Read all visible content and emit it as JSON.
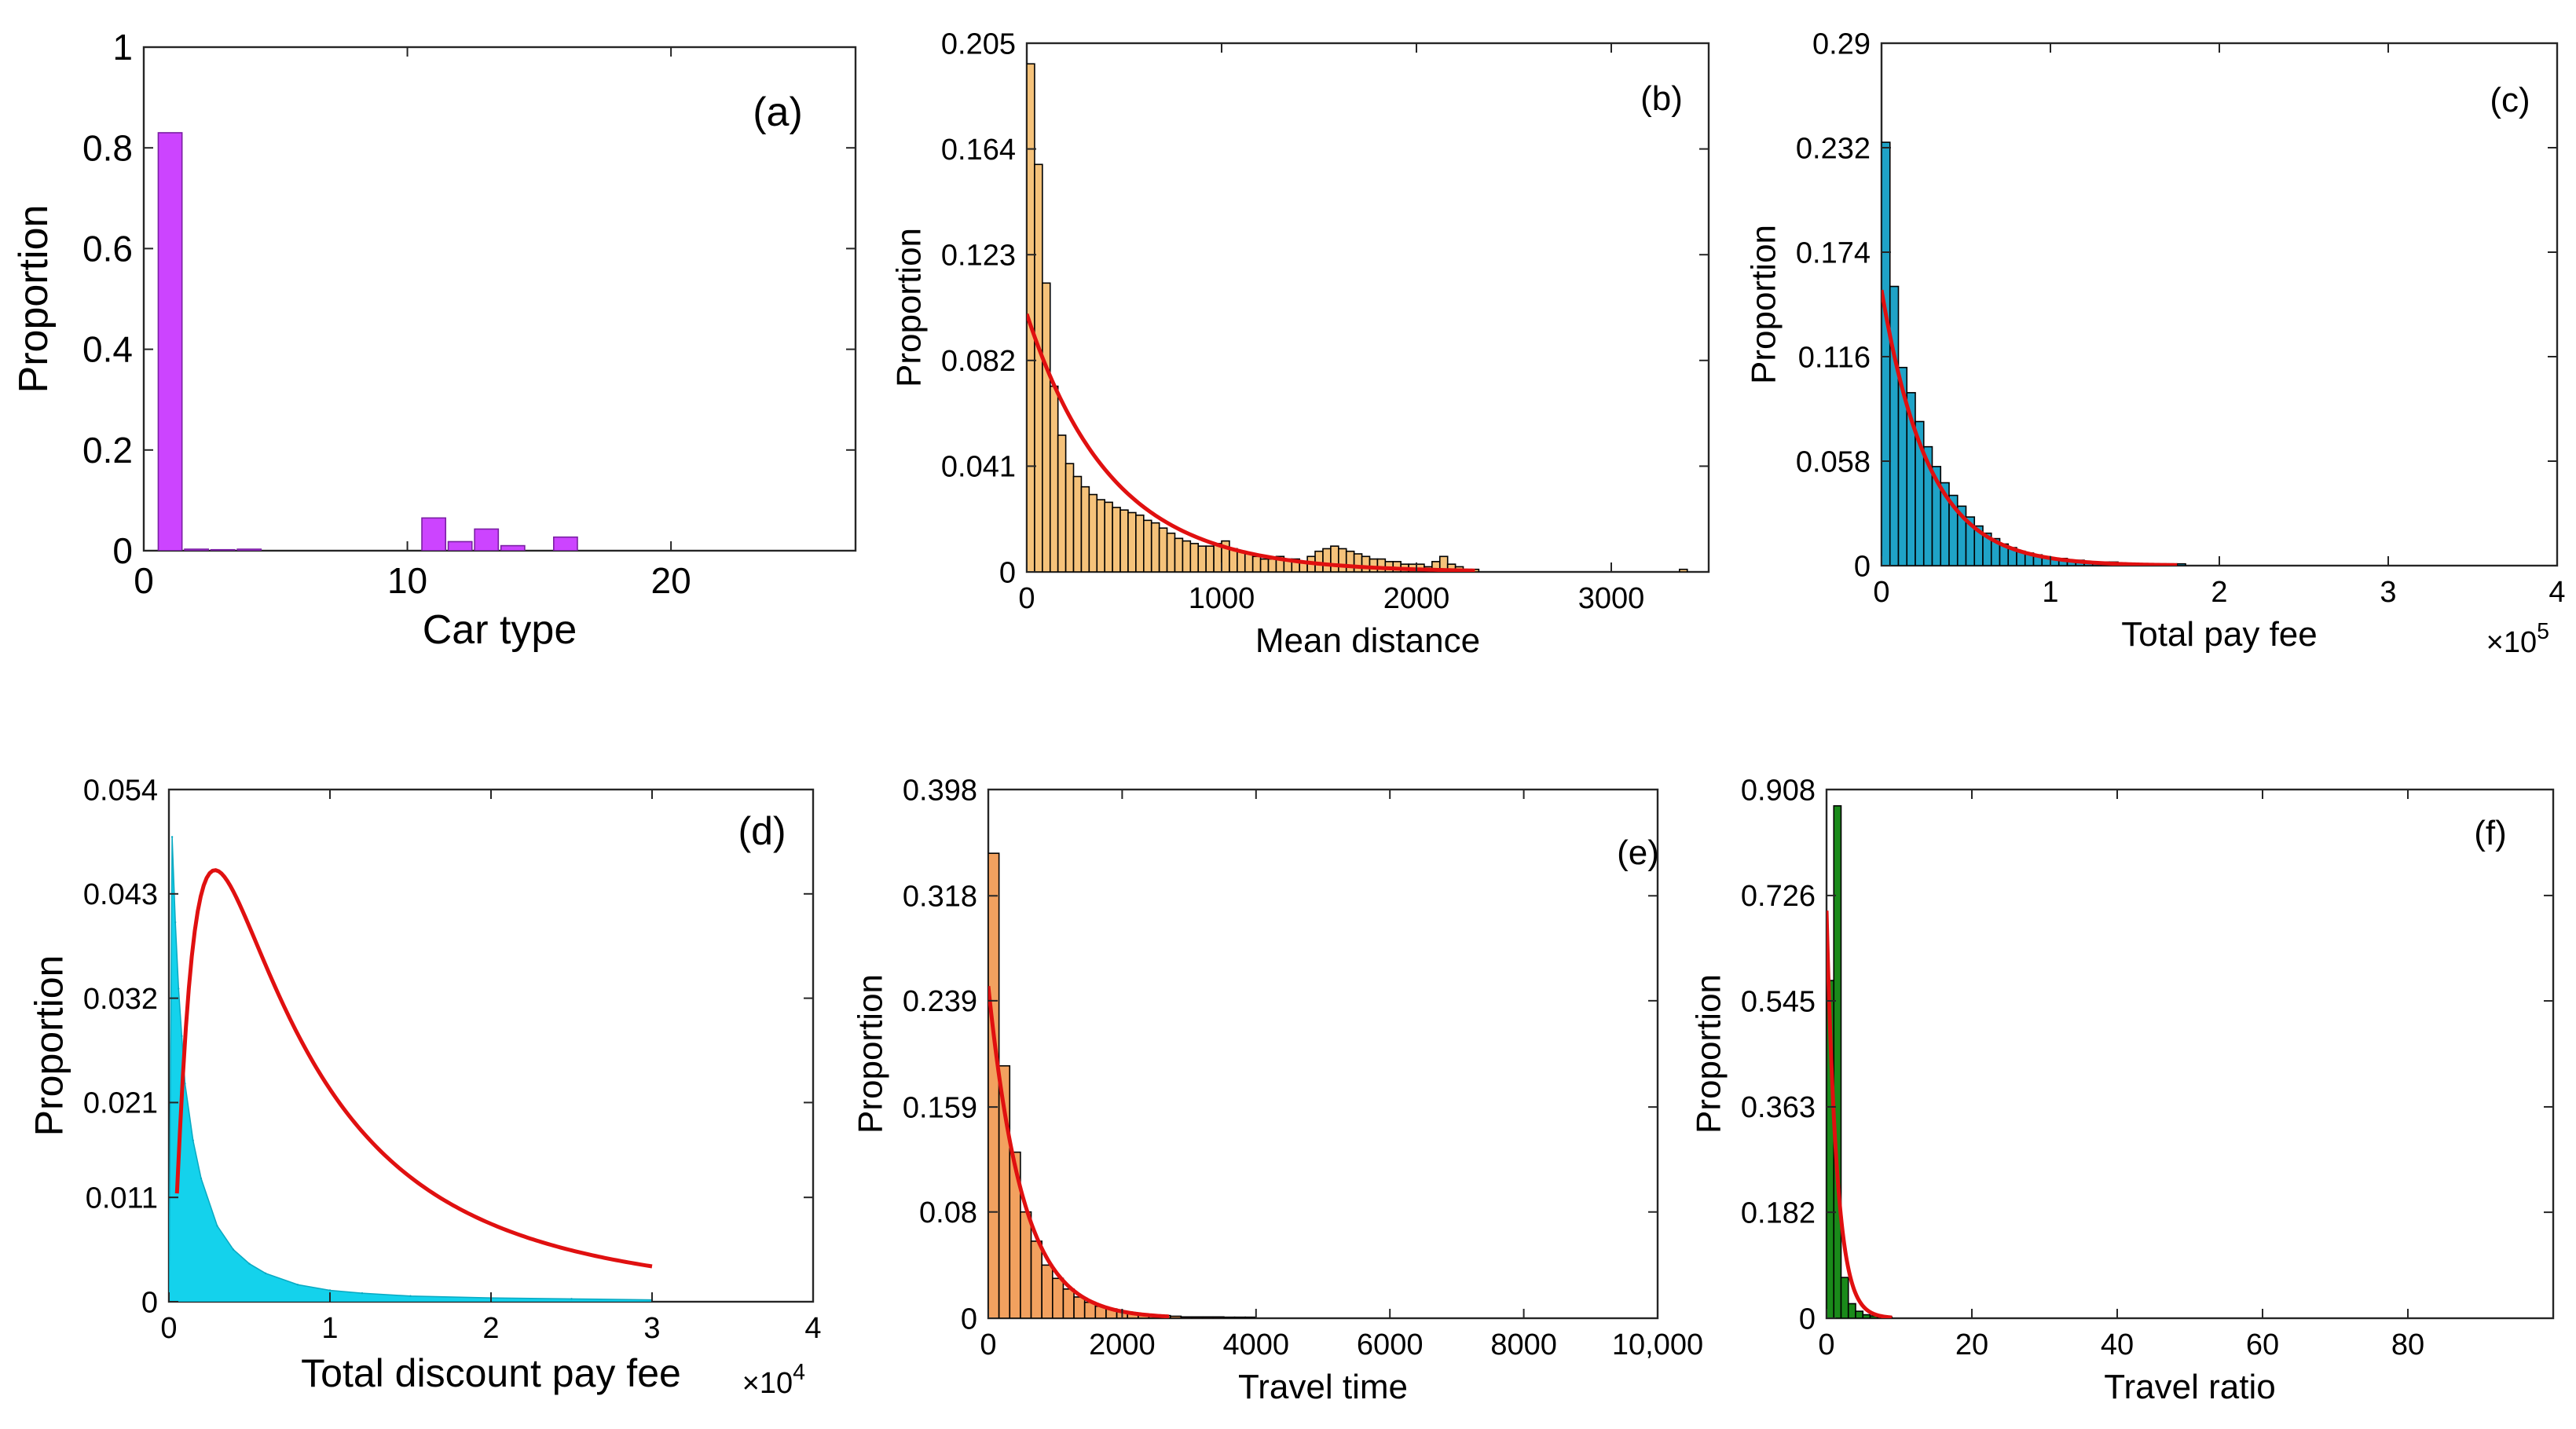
{
  "figure": {
    "panels": [
      "a",
      "b",
      "c",
      "d",
      "e",
      "f"
    ]
  },
  "chart_data": [
    {
      "id": "a",
      "type": "bar",
      "panel_label": "(a)",
      "xlabel": "Car type",
      "ylabel": "Proportion",
      "xlim": [
        0,
        27
      ],
      "ylim": [
        0,
        1
      ],
      "xticks": [
        0,
        10,
        20
      ],
      "xtick_labels": [
        "0",
        "10",
        "20"
      ],
      "yticks": [
        0,
        0.2,
        0.4,
        0.6,
        0.8,
        1
      ],
      "ytick_labels": [
        "0",
        "0.2",
        "0.4",
        "0.6",
        "0.8",
        "1"
      ],
      "bar_color": "#cc44ff",
      "bar_outline": "#7a1fa3",
      "bin_width": 0.9,
      "x": [
        1,
        2,
        3,
        4,
        11,
        12,
        13,
        14,
        16
      ],
      "values": [
        0.83,
        0.003,
        0.002,
        0.003,
        0.065,
        0.018,
        0.043,
        0.01,
        0.027
      ]
    },
    {
      "id": "b",
      "type": "bar",
      "panel_label": "(b)",
      "xlabel": "Mean distance",
      "ylabel": "Proportion",
      "xlim": [
        0,
        3500
      ],
      "ylim": [
        0,
        0.205
      ],
      "xticks": [
        0,
        1000,
        2000,
        3000
      ],
      "xtick_labels": [
        "0",
        "1000",
        "2000",
        "3000"
      ],
      "yticks": [
        0,
        0.041,
        0.082,
        0.123,
        0.164,
        0.205
      ],
      "ytick_labels": [
        "0",
        "0.041",
        "0.082",
        "0.123",
        "0.164",
        "0.205"
      ],
      "bar_color": "#f5c27a",
      "bar_outline": "#000000",
      "bin_width": 40,
      "x": [
        0,
        40,
        80,
        120,
        160,
        200,
        240,
        280,
        320,
        360,
        400,
        440,
        480,
        520,
        560,
        600,
        640,
        680,
        720,
        760,
        800,
        840,
        880,
        920,
        960,
        1000,
        1040,
        1080,
        1120,
        1160,
        1200,
        1240,
        1280,
        1320,
        1360,
        1400,
        1440,
        1480,
        1520,
        1560,
        1600,
        1640,
        1680,
        1720,
        1760,
        1800,
        1840,
        1880,
        1920,
        1960,
        2000,
        2040,
        2080,
        2120,
        2160,
        2200,
        2240,
        2280,
        3350
      ],
      "values": [
        0.197,
        0.158,
        0.112,
        0.072,
        0.053,
        0.042,
        0.037,
        0.033,
        0.03,
        0.028,
        0.027,
        0.025,
        0.024,
        0.023,
        0.022,
        0.02,
        0.019,
        0.017,
        0.015,
        0.013,
        0.012,
        0.011,
        0.01,
        0.01,
        0.011,
        0.012,
        0.009,
        0.008,
        0.007,
        0.006,
        0.005,
        0.005,
        0.006,
        0.005,
        0.005,
        0.004,
        0.006,
        0.008,
        0.009,
        0.01,
        0.009,
        0.008,
        0.007,
        0.006,
        0.005,
        0.005,
        0.004,
        0.004,
        0.003,
        0.003,
        0.003,
        0.002,
        0.004,
        0.006,
        0.003,
        0.002,
        0.001,
        0.001,
        0.001
      ],
      "fit": {
        "type": "exponential",
        "a": 0.1,
        "b": 0.0023,
        "x_range": [
          0,
          2300
        ],
        "color": "#e01010"
      }
    },
    {
      "id": "c",
      "type": "bar",
      "panel_label": "(c)",
      "xlabel": "Total pay fee",
      "ylabel": "Proportion",
      "exponent_label": "×10",
      "exponent_power": "5",
      "xlim": [
        0,
        4
      ],
      "ylim": [
        0,
        0.29
      ],
      "xticks": [
        0,
        1,
        2,
        3,
        4
      ],
      "xtick_labels": [
        "0",
        "1",
        "2",
        "3",
        "4"
      ],
      "yticks": [
        0,
        0.058,
        0.116,
        0.174,
        0.232,
        0.29
      ],
      "ytick_labels": [
        "0",
        "0.058",
        "0.116",
        "0.174",
        "0.232",
        "0.29"
      ],
      "bar_color": "#1fa3c7",
      "bar_outline": "#000000",
      "bin_width": 0.05,
      "x": [
        0,
        0.05,
        0.1,
        0.15,
        0.2,
        0.25,
        0.3,
        0.35,
        0.4,
        0.45,
        0.5,
        0.55,
        0.6,
        0.65,
        0.7,
        0.75,
        0.8,
        0.85,
        0.9,
        0.95,
        1.0,
        1.05,
        1.1,
        1.15,
        1.2,
        1.25,
        1.3,
        1.35,
        1.4,
        1.45,
        1.5,
        1.55,
        1.6,
        1.65,
        1.7,
        1.75
      ],
      "values": [
        0.235,
        0.155,
        0.11,
        0.096,
        0.08,
        0.066,
        0.055,
        0.046,
        0.039,
        0.033,
        0.027,
        0.022,
        0.018,
        0.015,
        0.012,
        0.01,
        0.008,
        0.007,
        0.006,
        0.005,
        0.004,
        0.004,
        0.003,
        0.003,
        0.002,
        0.002,
        0.002,
        0.002,
        0.001,
        0.001,
        0.001,
        0.001,
        0.001,
        0.001,
        0.001,
        0.001
      ],
      "fit": {
        "type": "exponential",
        "a": 0.153,
        "b": 3.6,
        "x_range": [
          0,
          1.75
        ],
        "color": "#e01010"
      }
    },
    {
      "id": "d",
      "type": "area",
      "panel_label": "(d)",
      "xlabel": "Total discount pay fee",
      "ylabel": "Proportion",
      "exponent_label": "×10",
      "exponent_power": "4",
      "xlim": [
        0,
        4
      ],
      "ylim": [
        0,
        0.054
      ],
      "xticks": [
        0,
        1,
        2,
        3,
        4
      ],
      "xtick_labels": [
        "0",
        "1",
        "2",
        "3",
        "4"
      ],
      "yticks": [
        0,
        0.011,
        0.021,
        0.032,
        0.043,
        0.054
      ],
      "ytick_labels": [
        "0",
        "0.011",
        "0.021",
        "0.032",
        "0.043",
        "0.054"
      ],
      "bar_color": "#14d2ec",
      "bar_outline": "#0aa9c2",
      "x": [
        0,
        0.02,
        0.04,
        0.06,
        0.08,
        0.1,
        0.15,
        0.2,
        0.3,
        0.4,
        0.5,
        0.6,
        0.8,
        1.0,
        1.2,
        1.5,
        2.0,
        2.5,
        3.0
      ],
      "values": [
        0.0,
        0.049,
        0.04,
        0.033,
        0.028,
        0.023,
        0.017,
        0.013,
        0.008,
        0.0055,
        0.004,
        0.003,
        0.0018,
        0.0012,
        0.0009,
        0.0006,
        0.0004,
        0.0003,
        0.0002
      ],
      "fit": {
        "type": "lognormal",
        "mu": -1.25,
        "sigma": 1.05,
        "scale": 0.0455,
        "x_range": [
          0.05,
          3.0
        ],
        "color": "#e01010"
      }
    },
    {
      "id": "e",
      "type": "bar",
      "panel_label": "(e)",
      "xlabel": "Travel time",
      "ylabel": "Proportion",
      "xlim": [
        0,
        10000
      ],
      "ylim": [
        0,
        0.398
      ],
      "xticks": [
        0,
        2000,
        4000,
        6000,
        8000,
        10000
      ],
      "xtick_labels": [
        "0",
        "2000",
        "4000",
        "6000",
        "8000",
        "10,000"
      ],
      "yticks": [
        0,
        0.08,
        0.159,
        0.239,
        0.318,
        0.398
      ],
      "ytick_labels": [
        "0",
        "0.08",
        "0.159",
        "0.239",
        "0.318",
        "0.398"
      ],
      "bar_color": "#f2a15f",
      "bar_outline": "#000000",
      "bin_width": 160,
      "x": [
        0,
        160,
        320,
        480,
        640,
        800,
        960,
        1120,
        1280,
        1440,
        1600,
        1760,
        1920,
        2080,
        2240,
        2400,
        2560,
        2720,
        2880,
        3040,
        3200,
        3360,
        3520,
        3680,
        3840
      ],
      "values": [
        0.35,
        0.19,
        0.125,
        0.08,
        0.058,
        0.04,
        0.03,
        0.022,
        0.016,
        0.012,
        0.009,
        0.007,
        0.005,
        0.004,
        0.003,
        0.0025,
        0.002,
        0.0015,
        0.001,
        0.001,
        0.001,
        0.001,
        0.0008,
        0.0008,
        0.0008
      ],
      "fit": {
        "type": "exponential",
        "a": 0.25,
        "b": 0.00195,
        "x_range": [
          0,
          2700
        ],
        "color": "#e01010"
      }
    },
    {
      "id": "f",
      "type": "bar",
      "panel_label": "(f)",
      "xlabel": "Travel ratio",
      "ylabel": "Proportion",
      "xlim": [
        0,
        100
      ],
      "ylim": [
        0,
        0.908
      ],
      "xticks": [
        0,
        20,
        40,
        60,
        80
      ],
      "xtick_labels": [
        "0",
        "20",
        "40",
        "60",
        "80"
      ],
      "yticks": [
        0,
        0.182,
        0.363,
        0.545,
        0.726,
        0.908
      ],
      "ytick_labels": [
        "0",
        "0.182",
        "0.363",
        "0.545",
        "0.726",
        "0.908"
      ],
      "bar_color": "#1a8a1a",
      "bar_outline": "#000000",
      "bin_width": 1,
      "x": [
        0,
        1,
        2,
        3,
        4,
        5,
        6,
        7,
        8
      ],
      "values": [
        0.58,
        0.88,
        0.07,
        0.025,
        0.012,
        0.006,
        0.004,
        0.003,
        0.002
      ],
      "fit": {
        "type": "exponential",
        "a": 0.7,
        "b": 0.7,
        "x_range": [
          0,
          9
        ],
        "color": "#e01010"
      }
    }
  ]
}
